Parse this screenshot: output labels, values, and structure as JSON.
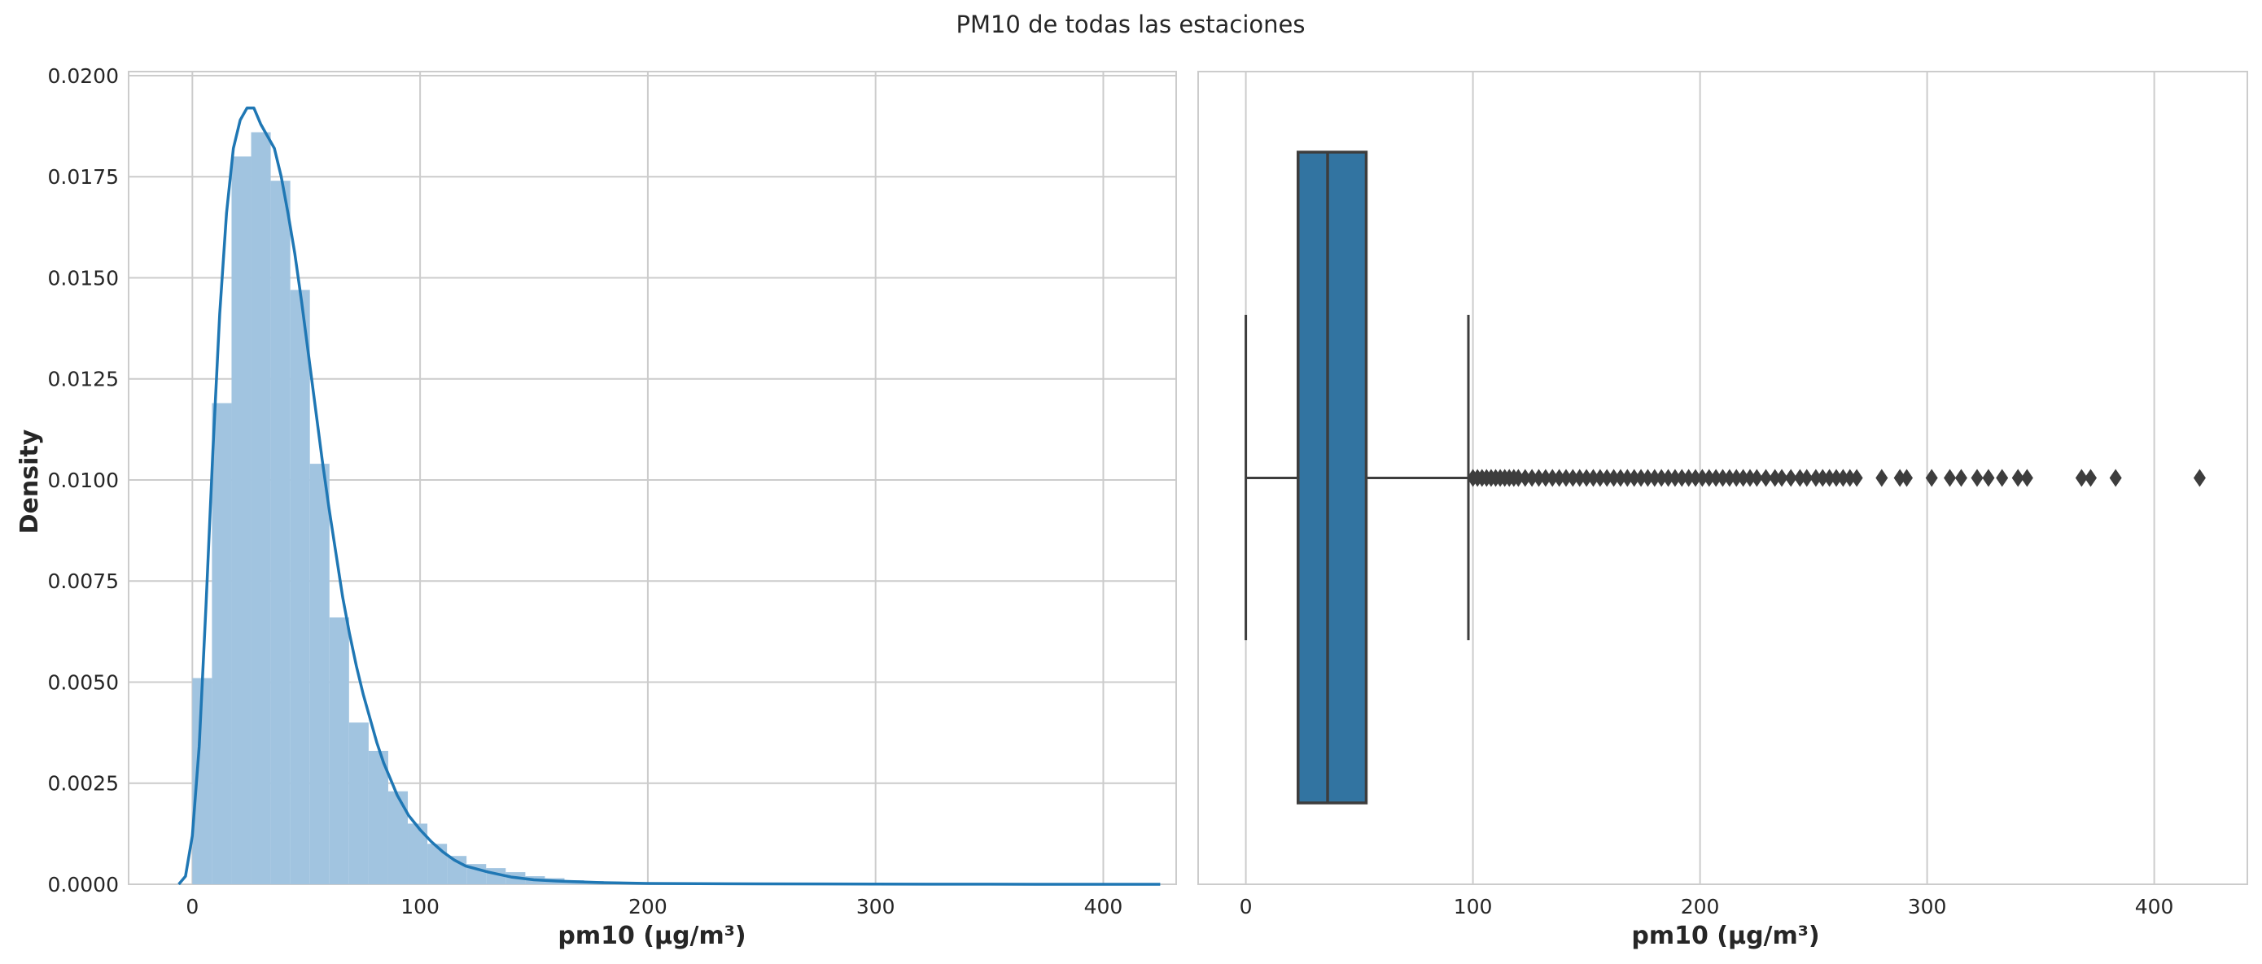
{
  "figure": {
    "title": "PM10 de todas las estaciones"
  },
  "chart_data": [
    {
      "type": "histogram",
      "title": "",
      "xlabel": "pm10 (µg/m³)",
      "ylabel": "Density",
      "xlim": [
        -28,
        432
      ],
      "ylim": [
        0,
        0.0201
      ],
      "xticks": [
        0,
        100,
        200,
        300,
        400
      ],
      "yticks": [
        0,
        0.0025,
        0.005,
        0.0075,
        0.01,
        0.0125,
        0.015,
        0.0175,
        0.02
      ],
      "ytick_labels": [
        "0.0000",
        "0.0025",
        "0.0050",
        "0.0075",
        "0.0100",
        "0.0125",
        "0.0150",
        "0.0175",
        "0.0200"
      ],
      "grid": true,
      "bin_edges": [
        0,
        8.6,
        17.2,
        25.8,
        34.4,
        43.0,
        51.6,
        60.2,
        68.8,
        77.4,
        86.0,
        94.6,
        103.2,
        111.8,
        120.4,
        129.0,
        137.6,
        146.2,
        154.8,
        163.4,
        172.0,
        180.6,
        189.2,
        197.8,
        206.4,
        215.0,
        223.6,
        232.2,
        240.8,
        249.4,
        258.0,
        266.6,
        275.2,
        283.8,
        292.4,
        301.0,
        309.6,
        318.2,
        326.8,
        335.4,
        344.0,
        352.6,
        361.2,
        369.8,
        378.4,
        387.0,
        395.6,
        404.2,
        412.8,
        421.4
      ],
      "values": [
        0.0051,
        0.0119,
        0.018,
        0.0186,
        0.0174,
        0.0147,
        0.0104,
        0.0066,
        0.004,
        0.0033,
        0.0023,
        0.0015,
        0.001,
        0.0007,
        0.0005,
        0.0004,
        0.0003,
        0.0002,
        0.00015,
        0.0001,
        8e-05,
        6e-05,
        5e-05,
        4e-05,
        3e-05,
        3e-05,
        2e-05,
        2e-05,
        2e-05,
        1e-05,
        1e-05,
        1e-05,
        1e-05,
        1e-05,
        1e-05,
        0,
        0,
        0,
        0,
        0,
        0,
        0,
        0,
        0,
        0,
        0,
        0,
        0,
        0
      ],
      "bar_color": "#a1c4e0",
      "kde": {
        "x": [
          -6,
          -3,
          0,
          3,
          6,
          9,
          12,
          15,
          18,
          21,
          24,
          27,
          30,
          33,
          36,
          39,
          42,
          45,
          48,
          51,
          54,
          57,
          60,
          63,
          66,
          69,
          72,
          75,
          78,
          81,
          84,
          87,
          90,
          95,
          100,
          105,
          110,
          115,
          120,
          130,
          140,
          150,
          160,
          170,
          180,
          200,
          250,
          300,
          350,
          400,
          425
        ],
        "y": [
          0,
          0.0002,
          0.0012,
          0.0034,
          0.0069,
          0.0107,
          0.0141,
          0.0166,
          0.0182,
          0.0189,
          0.0192,
          0.0192,
          0.0188,
          0.0185,
          0.0182,
          0.0175,
          0.0166,
          0.0156,
          0.0144,
          0.0131,
          0.0118,
          0.0105,
          0.0093,
          0.0082,
          0.0071,
          0.0062,
          0.0054,
          0.0047,
          0.0041,
          0.0035,
          0.003,
          0.0026,
          0.0022,
          0.0017,
          0.00135,
          0.00105,
          0.0008,
          0.0006,
          0.00045,
          0.0003,
          0.00018,
          0.00011,
          8e-05,
          6e-05,
          4e-05,
          2e-05,
          1e-05,
          5e-06,
          2e-06,
          1e-06,
          0
        ],
        "color": "#1f77b4"
      }
    },
    {
      "type": "boxplot",
      "title": "",
      "xlabel": "pm10 (µg/m³)",
      "ylabel": "",
      "xlim": [
        -21,
        441
      ],
      "xticks": [
        0,
        100,
        200,
        300,
        400
      ],
      "grid": true,
      "box": {
        "whisker_low": 0,
        "q1": 23,
        "median": 36,
        "q3": 53,
        "whisker_high": 98
      },
      "box_color": "#3274a1",
      "outliers": [
        100,
        102,
        104,
        106,
        108,
        110,
        112,
        114,
        116,
        118,
        120,
        123,
        126,
        129,
        132,
        135,
        138,
        141,
        144,
        147,
        150,
        153,
        156,
        159,
        162,
        165,
        168,
        171,
        174,
        177,
        180,
        183,
        186,
        189,
        192,
        195,
        198,
        201,
        204,
        207,
        210,
        213,
        216,
        219,
        222,
        225,
        229,
        233,
        236,
        240,
        244,
        247,
        251,
        254,
        257,
        260,
        263,
        266,
        269,
        280,
        288,
        291,
        302,
        310,
        315,
        322,
        327,
        333,
        340,
        344,
        368,
        372,
        383,
        420
      ]
    }
  ]
}
